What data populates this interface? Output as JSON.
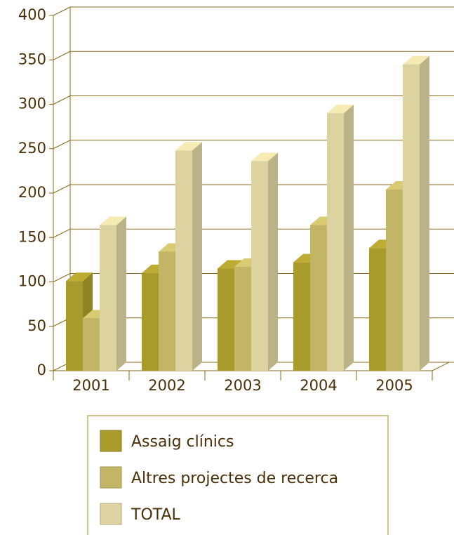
{
  "chart_data": {
    "type": "bar3d",
    "categories": [
      "2001",
      "2002",
      "2003",
      "2004",
      "2005"
    ],
    "series": [
      {
        "name": "Assaig clínics",
        "color": "#a99a2c",
        "values": [
          101,
          110,
          115,
          122,
          138
        ]
      },
      {
        "name": "Altres projectes de recerca",
        "color": "#c2b565",
        "values": [
          59,
          134,
          117,
          164,
          204
        ]
      },
      {
        "name": "TOTAL",
        "color": "#dcd3a0",
        "values": [
          164,
          248,
          236,
          290,
          345
        ]
      }
    ],
    "ylim": [
      0,
      400
    ],
    "yticks": [
      0,
      50,
      100,
      150,
      200,
      250,
      300,
      350,
      400
    ],
    "grid": true,
    "legend": "bottom"
  }
}
